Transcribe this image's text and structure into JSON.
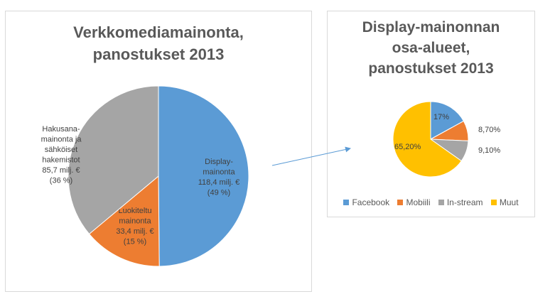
{
  "chart_data": [
    {
      "type": "pie",
      "title_lines": [
        "Verkkomediamainonta,",
        "panostukset 2013"
      ],
      "slices": [
        {
          "name": "Display-mainonta",
          "value": 118.4,
          "percent": 49,
          "color": "#5b9bd5",
          "label_lines": [
            "Display-",
            "mainonta",
            "118,4 milj. €",
            "(49 %)"
          ]
        },
        {
          "name": "Luokiteltu mainonta",
          "value": 33.4,
          "percent": 15,
          "color": "#ed7d31",
          "label_lines": [
            "Luokiteltu",
            "mainonta",
            "33,4 milj. €",
            "(15 %)"
          ]
        },
        {
          "name": "Hakusanamainonta ja sähköiset hakemistot",
          "value": 85.7,
          "percent": 36,
          "color": "#a5a5a5",
          "label_lines": [
            "Hakusana-",
            "mainonta ja",
            "sähköiset",
            "hakemistot",
            "85,7 milj. €",
            "(36 %)"
          ]
        }
      ],
      "legend": "none"
    },
    {
      "type": "pie",
      "title_lines": [
        "Display-mainonnan",
        "osa-alueet,",
        "panostukset 2013"
      ],
      "slices": [
        {
          "name": "Facebook",
          "value": 17,
          "label": "17%",
          "color": "#5b9bd5"
        },
        {
          "name": "Mobiili",
          "value": 8.7,
          "label": "8,70%",
          "color": "#ed7d31"
        },
        {
          "name": "In-stream",
          "value": 9.1,
          "label": "9,10%",
          "color": "#a5a5a5"
        },
        {
          "name": "Muut",
          "value": 65.2,
          "label": "65,20%",
          "color": "#ffc000"
        }
      ],
      "legend": "bottom"
    }
  ]
}
